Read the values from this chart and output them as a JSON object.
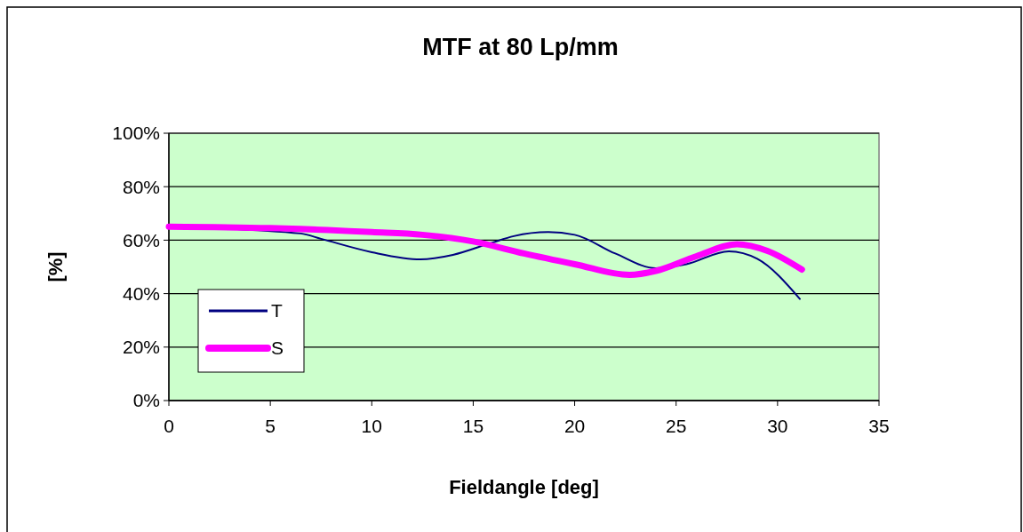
{
  "chart_data": {
    "type": "line",
    "title": "MTF at 80 Lp/mm",
    "xlabel": "Fieldangle [deg]",
    "ylabel": "[%]",
    "xlim": [
      0,
      35
    ],
    "xticks": [
      0,
      5,
      10,
      15,
      20,
      25,
      30,
      35
    ],
    "ylim": [
      0,
      100
    ],
    "yticks": [
      {
        "value": 0,
        "label": "0%"
      },
      {
        "value": 20,
        "label": "20%"
      },
      {
        "value": 40,
        "label": "40%"
      },
      {
        "value": 60,
        "label": "60%"
      },
      {
        "value": 80,
        "label": "80%"
      },
      {
        "value": 100,
        "label": "100%"
      }
    ],
    "grid": "y",
    "legend": "left",
    "marker": "none",
    "series": [
      {
        "name": "T",
        "color": "#000080",
        "x": [
          0,
          6.5,
          7.5,
          10,
          12.4,
          14,
          15.9,
          17,
          18.7,
          20,
          22,
          24,
          25.5,
          27.6,
          29,
          31.1
        ],
        "values": [
          65,
          62.5,
          60.5,
          55.5,
          52.8,
          54.5,
          59,
          61.5,
          63,
          62,
          55,
          49.5,
          51,
          55.8,
          53,
          38
        ]
      },
      {
        "name": "S",
        "color": "#ff00ff",
        "x": [
          0,
          5,
          10,
          12.5,
          15,
          17.5,
          20,
          22.7,
          24,
          26,
          28,
          29.5,
          31.2
        ],
        "values": [
          65,
          64.5,
          63,
          62,
          59.5,
          55,
          51,
          47,
          48.5,
          54,
          58.5,
          56,
          49
        ]
      }
    ]
  }
}
